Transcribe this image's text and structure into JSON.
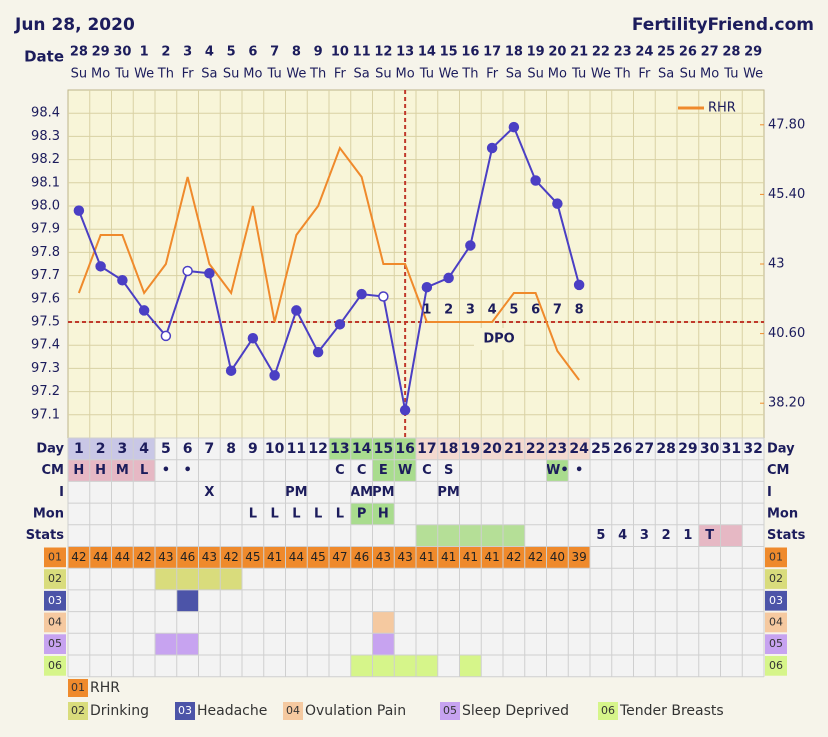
{
  "header": {
    "date": "Jun 28, 2020",
    "site": "FertilityFriend.com"
  },
  "chart_data": {
    "type": "line",
    "date_label": "Date",
    "dates": [
      "28",
      "29",
      "30",
      "1",
      "2",
      "3",
      "4",
      "5",
      "6",
      "7",
      "8",
      "9",
      "10",
      "11",
      "12",
      "13",
      "14",
      "15",
      "16",
      "17",
      "18",
      "19",
      "20",
      "21",
      "22",
      "23",
      "24",
      "25",
      "26",
      "27",
      "28",
      "29"
    ],
    "weekdays": [
      "Su",
      "Mo",
      "Tu",
      "We",
      "Th",
      "Fr",
      "Sa",
      "Su",
      "Mo",
      "Tu",
      "We",
      "Th",
      "Fr",
      "Sa",
      "Su",
      "Mo",
      "Tu",
      "We",
      "Th",
      "Fr",
      "Sa",
      "Su",
      "Mo",
      "Tu",
      "We",
      "Th",
      "Fr",
      "Sa",
      "Su",
      "Mo",
      "Tu",
      "We"
    ],
    "day_label": "Day",
    "categories": [
      "1",
      "2",
      "3",
      "4",
      "5",
      "6",
      "7",
      "8",
      "9",
      "10",
      "11",
      "12",
      "13",
      "14",
      "15",
      "16",
      "17",
      "18",
      "19",
      "20",
      "21",
      "22",
      "23",
      "24",
      "25",
      "26",
      "27",
      "28",
      "29",
      "30",
      "31",
      "32"
    ],
    "day_fills": [
      "#c9c7e6",
      "#c9c7e6",
      "#c9c7e6",
      "#c9c7e6",
      null,
      null,
      null,
      null,
      null,
      null,
      null,
      null,
      "#a9dc8e",
      "#a9dc8e",
      "#a9dc8e",
      "#a9dc8e",
      "#f3d9cf",
      "#f3d9cf",
      "#f3d9cf",
      "#f3d9cf",
      "#f3d9cf",
      "#f3d9cf",
      "#f3d9cf",
      "#f3d9cf",
      null,
      null,
      null,
      null,
      null,
      null,
      null,
      null
    ],
    "series": [
      {
        "color": "#4b3fc4",
        "hollow_days": [
          5,
          6,
          15
        ],
        "values": [
          97.98,
          97.74,
          97.68,
          97.55,
          97.44,
          97.72,
          97.71,
          97.29,
          97.43,
          97.27,
          97.55,
          97.37,
          97.49,
          97.62,
          97.61,
          97.12,
          97.65,
          97.69,
          97.83,
          98.25,
          98.34,
          98.11,
          98.01,
          97.66,
          null,
          null,
          null,
          null,
          null,
          null,
          null,
          null
        ]
      },
      {
        "name": "RHR",
        "color": "#ef8a2c",
        "axis": "y2",
        "values": [
          42,
          44,
          44,
          42,
          43,
          46,
          43,
          42,
          45,
          41,
          44,
          45,
          47,
          46,
          43,
          43,
          41,
          41,
          41,
          41,
          42,
          42,
          40,
          39,
          null,
          null,
          null,
          null,
          null,
          null,
          null,
          null
        ]
      }
    ],
    "ylim": [
      97.0,
      98.5
    ],
    "yticks": [
      97.1,
      97.2,
      97.3,
      97.4,
      97.5,
      97.6,
      97.7,
      97.8,
      97.9,
      {
        "value": 98.0,
        "label": "98.0"
      },
      98.1,
      98.2,
      98.3,
      98.4
    ],
    "y2lim": [
      37,
      49
    ],
    "y2ticks": [
      {
        "value": 38.2,
        "label": "38.20"
      },
      {
        "value": 40.6,
        "label": "40.60"
      },
      43,
      {
        "value": 45.4,
        "label": "45.40"
      },
      {
        "value": 47.8,
        "label": "47.80"
      }
    ],
    "grid": true,
    "coverline": 97.5,
    "ovulation_day": 16,
    "line_color": "#c0392b",
    "legend": "top-right",
    "dpo_label": "DPO",
    "dpo": [
      null,
      null,
      null,
      null,
      null,
      null,
      null,
      null,
      null,
      null,
      null,
      null,
      null,
      null,
      null,
      null,
      1,
      2,
      3,
      4,
      5,
      6,
      7,
      8,
      null,
      null,
      null,
      null,
      null,
      null,
      null,
      null
    ],
    "table": {
      "rows": [
        {
          "label": "CM",
          "cells": [
            "H",
            "H",
            "M",
            "L",
            "•",
            "•",
            null,
            null,
            null,
            null,
            null,
            null,
            "C",
            "C",
            "E",
            "W",
            "C",
            "S",
            null,
            null,
            null,
            null,
            "W•",
            "•",
            null,
            null,
            null,
            null,
            null,
            null,
            null,
            null
          ],
          "fills": [
            "#e6b8c4",
            "#e6b8c4",
            "#e6b8c4",
            "#e6b8c4",
            null,
            null,
            null,
            null,
            null,
            null,
            null,
            null,
            null,
            null,
            "#a9dc8e",
            "#a9dc8e",
            null,
            null,
            null,
            null,
            null,
            null,
            "#a9dc8e",
            null,
            null,
            null,
            null,
            null,
            null,
            null,
            null,
            null
          ]
        },
        {
          "label": "I",
          "cells": [
            null,
            null,
            null,
            null,
            null,
            null,
            "X",
            null,
            null,
            null,
            "PM",
            null,
            null,
            "AM",
            "PM",
            null,
            null,
            "PM",
            null,
            null,
            null,
            null,
            null,
            null,
            null,
            null,
            null,
            null,
            null,
            null,
            null,
            null
          ]
        },
        {
          "label": "Mon",
          "cells": [
            null,
            null,
            null,
            null,
            null,
            null,
            null,
            null,
            "L",
            "L",
            "L",
            "L",
            "L",
            "P",
            "H",
            null,
            null,
            null,
            null,
            null,
            null,
            null,
            null,
            null,
            null,
            null,
            null,
            null,
            null,
            null,
            null,
            null
          ],
          "fills": [
            null,
            null,
            null,
            null,
            null,
            null,
            null,
            null,
            null,
            null,
            null,
            null,
            null,
            "#a9dc8e",
            "#a9dc8e",
            null,
            null,
            null,
            null,
            null,
            null,
            null,
            null,
            null,
            null,
            null,
            null,
            null,
            null,
            null,
            null,
            null
          ]
        },
        {
          "label": "Stats",
          "cells": [
            null,
            null,
            null,
            null,
            null,
            null,
            null,
            null,
            null,
            null,
            null,
            null,
            null,
            null,
            null,
            null,
            null,
            null,
            null,
            null,
            null,
            null,
            null,
            null,
            "5",
            "4",
            "3",
            "2",
            "1",
            "T",
            null,
            null
          ],
          "fills": [
            null,
            null,
            null,
            null,
            null,
            null,
            null,
            null,
            null,
            null,
            null,
            null,
            null,
            null,
            null,
            null,
            "#b5df97",
            "#b5df97",
            "#b5df97",
            "#b5df97",
            "#b5df97",
            null,
            null,
            null,
            null,
            null,
            null,
            null,
            null,
            "#e6b8c4",
            "#e6b8c4",
            null
          ]
        }
      ]
    },
    "symptoms": [
      {
        "code": "01",
        "name": "RHR",
        "color": "#ef8a2c"
      },
      {
        "code": "02",
        "name": "Drinking",
        "color": "#d9dc7c",
        "days": [
          5,
          6,
          7,
          8
        ]
      },
      {
        "code": "03",
        "name": "Headache",
        "color": "#4c54a8",
        "days": [
          6
        ]
      },
      {
        "code": "04",
        "name": "Ovulation Pain",
        "color": "#f5c9a0",
        "days": [
          15
        ]
      },
      {
        "code": "05",
        "name": "Sleep Deprived",
        "color": "#c7a3f0",
        "days": [
          5,
          6,
          15
        ]
      },
      {
        "code": "06",
        "name": "Tender Breasts",
        "color": "#d6f58a",
        "days": [
          14,
          15,
          16,
          17,
          19
        ]
      }
    ]
  }
}
